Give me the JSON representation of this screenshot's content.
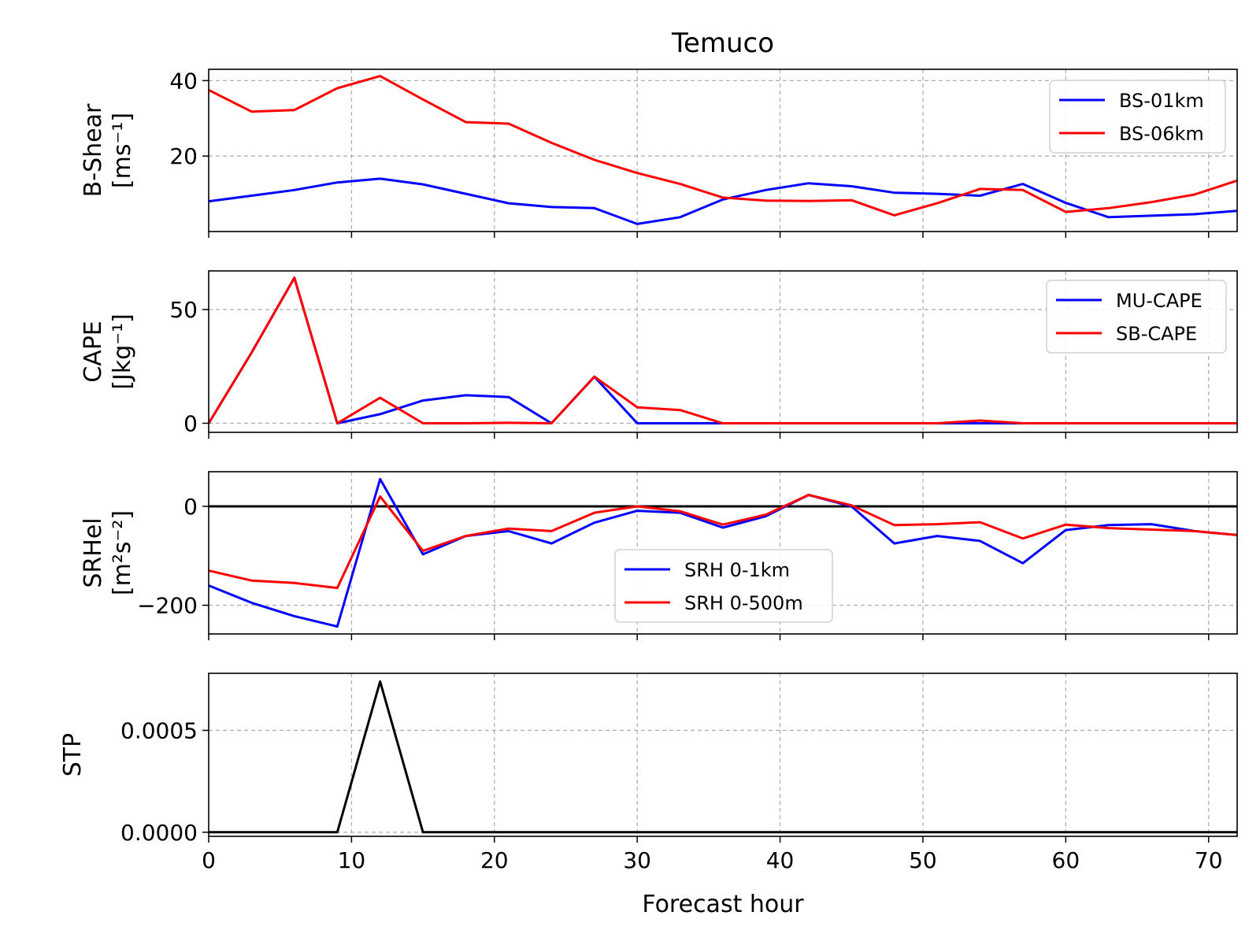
{
  "figure": {
    "title": "Temuco",
    "xlabel": "Forecast hour"
  },
  "chart_data": [
    {
      "type": "line",
      "ylabel": [
        "B-Shear",
        "[ms⁻¹]"
      ],
      "ylim": [
        0,
        43
      ],
      "yticks": [
        20,
        40
      ],
      "ytick_labels": [
        "20",
        "40"
      ],
      "xlim": [
        0,
        72
      ],
      "grid": true,
      "legend": "top-right",
      "series": [
        {
          "name": "BS-01km",
          "color": "#0000ff",
          "x": [
            0,
            3,
            6,
            9,
            12,
            15,
            18,
            21,
            24,
            27,
            30,
            33,
            36,
            39,
            42,
            45,
            48,
            51,
            54,
            57,
            60,
            63,
            66,
            69,
            72
          ],
          "y": [
            8,
            9.5,
            11,
            13,
            14,
            12.5,
            10,
            7.5,
            6.5,
            6.2,
            2,
            3.8,
            8.5,
            11,
            12.8,
            12,
            10.3,
            10,
            9.5,
            12.6,
            7.6,
            3.8,
            4.2,
            4.6,
            5.5
          ]
        },
        {
          "name": "BS-06km",
          "color": "#ff0000",
          "x": [
            0,
            3,
            6,
            9,
            12,
            15,
            18,
            21,
            24,
            27,
            30,
            33,
            36,
            39,
            42,
            45,
            48,
            51,
            54,
            57,
            60,
            63,
            66,
            69,
            72
          ],
          "y": [
            37.5,
            31.8,
            32.2,
            38,
            41.2,
            35,
            29,
            28.6,
            23.5,
            19,
            15.5,
            12.6,
            9,
            8.2,
            8.1,
            8.3,
            4.3,
            7.5,
            11.3,
            11,
            5.2,
            6.2,
            7.8,
            9.8,
            13.5
          ]
        }
      ]
    },
    {
      "type": "line",
      "ylabel": [
        "CAPE",
        "[Jkg⁻¹]"
      ],
      "ylim": [
        -4,
        67
      ],
      "yticks": [
        0,
        50
      ],
      "ytick_labels": [
        "0",
        "50"
      ],
      "xlim": [
        0,
        72
      ],
      "grid": true,
      "legend": "top-right",
      "series": [
        {
          "name": "MU-CAPE",
          "color": "#0000ff",
          "x": [
            0,
            3,
            6,
            9,
            12,
            15,
            18,
            21,
            24,
            27,
            30,
            33,
            36,
            39,
            42,
            45,
            48,
            51,
            54,
            57,
            60,
            63,
            66,
            69,
            72
          ],
          "y": [
            0,
            31,
            64,
            0,
            4,
            10,
            12.3,
            11.5,
            0,
            20.5,
            0,
            0,
            0,
            0,
            0,
            0,
            0,
            0,
            0,
            0,
            0,
            0,
            0,
            0,
            0
          ]
        },
        {
          "name": "SB-CAPE",
          "color": "#ff0000",
          "x": [
            0,
            3,
            6,
            9,
            12,
            15,
            18,
            21,
            24,
            27,
            30,
            33,
            36,
            39,
            42,
            45,
            48,
            51,
            54,
            57,
            60,
            63,
            66,
            69,
            72
          ],
          "y": [
            0,
            31,
            64,
            0,
            11.2,
            0,
            0,
            0.2,
            0,
            20.5,
            7,
            5.8,
            0,
            0,
            0,
            0,
            0,
            0,
            1.2,
            0,
            0,
            0,
            0,
            0,
            0
          ]
        }
      ]
    },
    {
      "type": "line",
      "ylabel": [
        "SRHel",
        "[m²s⁻²]"
      ],
      "ylim": [
        -258,
        70
      ],
      "yticks": [
        -200,
        0
      ],
      "ytick_labels": [
        "−200",
        "0"
      ],
      "xlim": [
        0,
        72
      ],
      "grid": true,
      "zero_line": true,
      "legend": "lower-center",
      "series": [
        {
          "name": "SRH 0-1km",
          "color": "#0000ff",
          "x": [
            0,
            3,
            6,
            9,
            12,
            15,
            18,
            21,
            24,
            27,
            30,
            33,
            36,
            39,
            42,
            45,
            48,
            51,
            54,
            57,
            60,
            63,
            66,
            69,
            72
          ],
          "y": [
            -160,
            -195,
            -222,
            -243,
            55,
            -97,
            -60,
            -50,
            -75,
            -33,
            -9,
            -13,
            -43,
            -20,
            23,
            0,
            -75,
            -60,
            -70,
            -115,
            -48,
            -38,
            -36,
            -50,
            -58
          ]
        },
        {
          "name": "SRH 0-500m",
          "color": "#ff0000",
          "x": [
            0,
            3,
            6,
            9,
            12,
            15,
            18,
            21,
            24,
            27,
            30,
            33,
            36,
            39,
            42,
            45,
            48,
            51,
            54,
            57,
            60,
            63,
            66,
            69,
            72
          ],
          "y": [
            -130,
            -150,
            -155,
            -165,
            20,
            -90,
            -60,
            -45,
            -50,
            -13,
            0,
            -10,
            -37,
            -17,
            23,
            2,
            -38,
            -36,
            -32,
            -65,
            -37,
            -44,
            -47,
            -50,
            -58
          ]
        }
      ]
    },
    {
      "type": "line",
      "ylabel": [
        "STP"
      ],
      "ylim": [
        -2e-05,
        0.00078
      ],
      "yticks": [
        0,
        0.0005
      ],
      "ytick_labels": [
        "0.0000",
        "0.0005"
      ],
      "xlim": [
        0,
        72
      ],
      "xticks": [
        0,
        10,
        20,
        30,
        40,
        50,
        60,
        70
      ],
      "xtick_labels": [
        "0",
        "10",
        "20",
        "30",
        "40",
        "50",
        "60",
        "70"
      ],
      "grid": true,
      "series": [
        {
          "color": "#000000",
          "x": [
            0,
            3,
            6,
            9,
            12,
            15,
            18,
            21,
            24,
            27,
            30,
            33,
            36,
            39,
            42,
            45,
            48,
            51,
            54,
            57,
            60,
            63,
            66,
            69,
            72
          ],
          "y": [
            0,
            0,
            0,
            0,
            0.00074,
            0,
            0,
            0,
            0,
            0,
            0,
            0,
            0,
            0,
            0,
            0,
            0,
            0,
            0,
            0,
            0,
            0,
            0,
            0,
            0
          ]
        }
      ]
    }
  ]
}
